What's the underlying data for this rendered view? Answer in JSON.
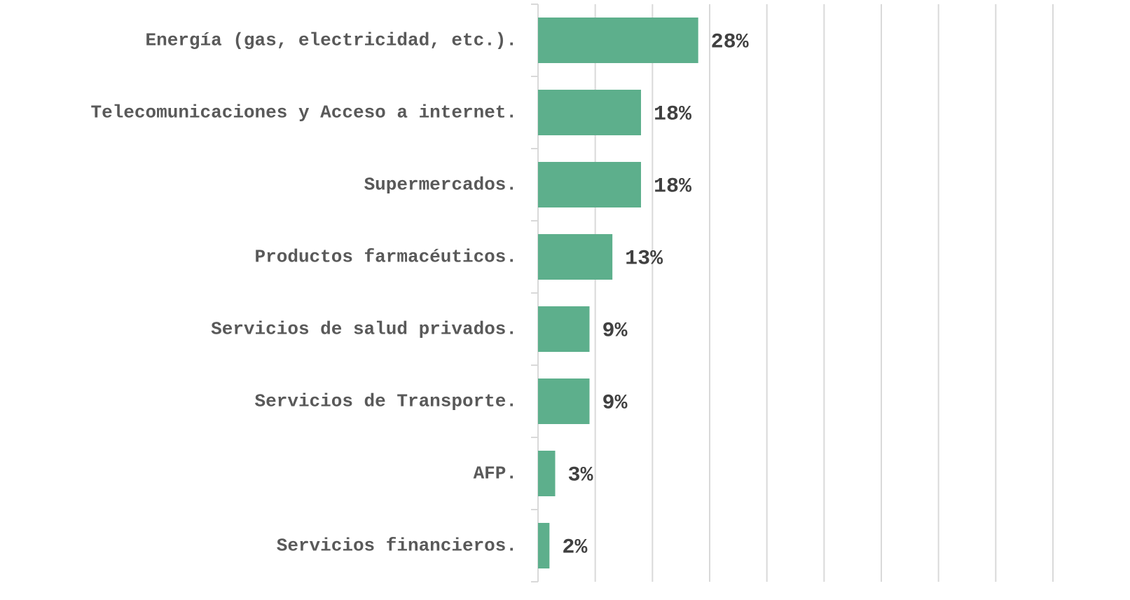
{
  "chart_data": {
    "type": "bar",
    "orientation": "horizontal",
    "categories": [
      "Energía (gas, electricidad, etc.).",
      "Telecomunicaciones y Acceso a internet.",
      "Supermercados.",
      "Productos farmacéuticos.",
      "Servicios de salud privados.",
      "Servicios de Transporte.",
      "AFP.",
      "Servicios financieros."
    ],
    "values": [
      28,
      18,
      18,
      13,
      9,
      9,
      3,
      2
    ],
    "value_labels": [
      "28%",
      "18%",
      "18%",
      "13%",
      "9%",
      "9%",
      "3%",
      "2%"
    ],
    "color": "#5daf8c",
    "xlim": [
      0,
      90
    ],
    "xticks": [
      0,
      10,
      20,
      30,
      40,
      50,
      60,
      70,
      80,
      90
    ],
    "grid": true
  }
}
